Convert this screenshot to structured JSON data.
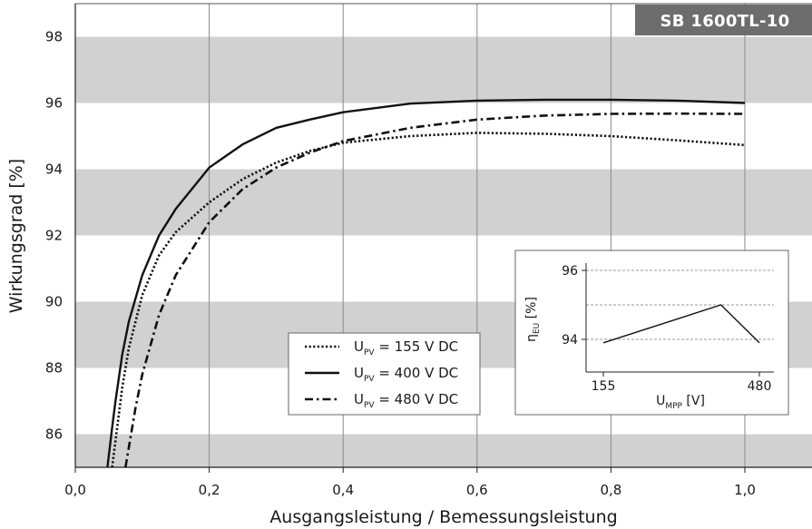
{
  "badge": "SB 1600TL-10",
  "chart_data": [
    {
      "type": "line",
      "title": "",
      "xlabel": "Ausgangsleistung / Bemessungsleistung",
      "ylabel": "Wirkungsgrad [%]",
      "xlim": [
        0,
        1.1
      ],
      "ylim": [
        85,
        99
      ],
      "x_ticks": [
        "0,0",
        "0,2",
        "0,4",
        "0,6",
        "0,8",
        "1,0"
      ],
      "y_ticks": [
        "86",
        "88",
        "90",
        "92",
        "94",
        "96",
        "98"
      ],
      "bands": [
        [
          85,
          86
        ],
        [
          88,
          90
        ],
        [
          92,
          94
        ],
        [
          96,
          98
        ]
      ],
      "grid": "vertical",
      "legend_position": "center-right",
      "series": [
        {
          "name": "U_PV = 155 V DC",
          "legend": {
            "main": "U",
            "sub": "PV",
            "rest": " = 155 V DC"
          },
          "style": "dotted",
          "x": [
            0.055,
            0.06,
            0.07,
            0.08,
            0.1,
            0.125,
            0.15,
            0.2,
            0.25,
            0.3,
            0.35,
            0.4,
            0.5,
            0.6,
            0.7,
            0.8,
            0.9,
            1.0
          ],
          "values": [
            85.0,
            85.8,
            87.4,
            88.6,
            90.2,
            91.4,
            92.1,
            93.0,
            93.7,
            94.2,
            94.55,
            94.8,
            95.0,
            95.1,
            95.07,
            95.0,
            94.87,
            94.73
          ]
        },
        {
          "name": "U_PV = 400 V DC",
          "legend": {
            "main": "U",
            "sub": "PV",
            "rest": " = 400 V DC"
          },
          "style": "solid",
          "x": [
            0.048,
            0.055,
            0.06,
            0.07,
            0.08,
            0.1,
            0.125,
            0.15,
            0.2,
            0.25,
            0.3,
            0.35,
            0.4,
            0.5,
            0.6,
            0.7,
            0.8,
            0.9,
            1.0
          ],
          "values": [
            85.0,
            86.2,
            87.0,
            88.4,
            89.4,
            90.8,
            92.0,
            92.8,
            94.05,
            94.75,
            95.25,
            95.5,
            95.72,
            95.98,
            96.07,
            96.1,
            96.1,
            96.07,
            96.0
          ]
        },
        {
          "name": "U_PV = 480 V DC",
          "legend": {
            "main": "U",
            "sub": "PV",
            "rest": " = 480 V DC"
          },
          "style": "dash-dot",
          "x": [
            0.075,
            0.08,
            0.09,
            0.1,
            0.125,
            0.15,
            0.2,
            0.25,
            0.3,
            0.35,
            0.4,
            0.5,
            0.6,
            0.7,
            0.8,
            0.9,
            1.0
          ],
          "values": [
            85.0,
            85.6,
            86.8,
            87.8,
            89.6,
            90.8,
            92.4,
            93.4,
            94.05,
            94.5,
            94.85,
            95.25,
            95.5,
            95.62,
            95.67,
            95.68,
            95.67
          ]
        }
      ]
    },
    {
      "type": "line",
      "title": "",
      "xlabel": {
        "main": "U",
        "sub": "MPP",
        "rest": " [V]"
      },
      "ylabel": {
        "main": "η",
        "sub": "EU",
        "rest": " [%]"
      },
      "xlim": [
        130,
        500
      ],
      "ylim": [
        93.5,
        96.5
      ],
      "x_ticks": [
        "155",
        "480"
      ],
      "y_ticks": [
        "94",
        "96"
      ],
      "grid": "horizontal-dashed",
      "series": [
        {
          "name": "",
          "style": "solid",
          "x": [
            155,
            400,
            480
          ],
          "values": [
            93.9,
            95.0,
            93.9
          ]
        }
      ]
    }
  ]
}
